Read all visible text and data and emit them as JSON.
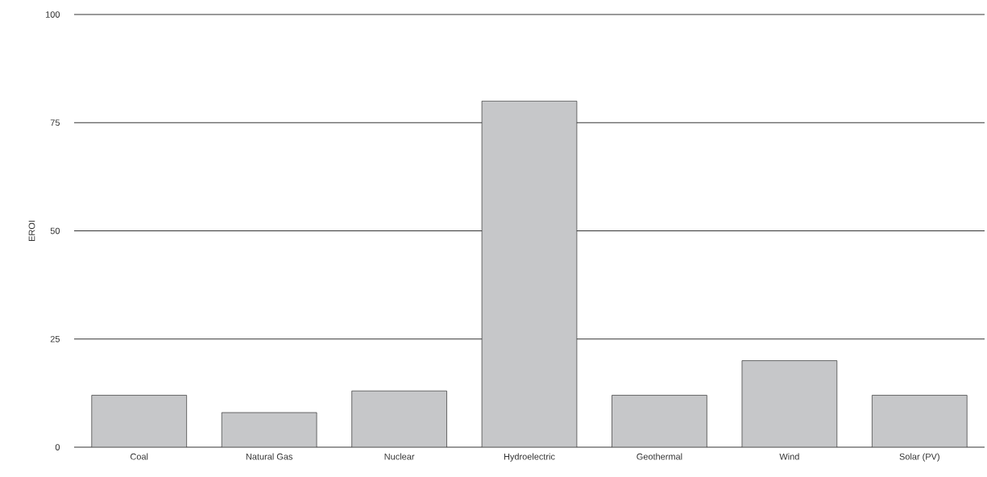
{
  "chart_data": {
    "type": "bar",
    "ylabel": "EROI",
    "categories": [
      "Coal",
      "Natural Gas",
      "Nuclear",
      "Hydroelectric",
      "Geothermal",
      "Wind",
      "Solar (PV)"
    ],
    "values": [
      12,
      8,
      13,
      80,
      12,
      20,
      12
    ],
    "color": "#c6c7c9",
    "ylim": [
      0,
      100
    ],
    "yticks": [
      0,
      25,
      50,
      75,
      100
    ],
    "grid": "y"
  }
}
